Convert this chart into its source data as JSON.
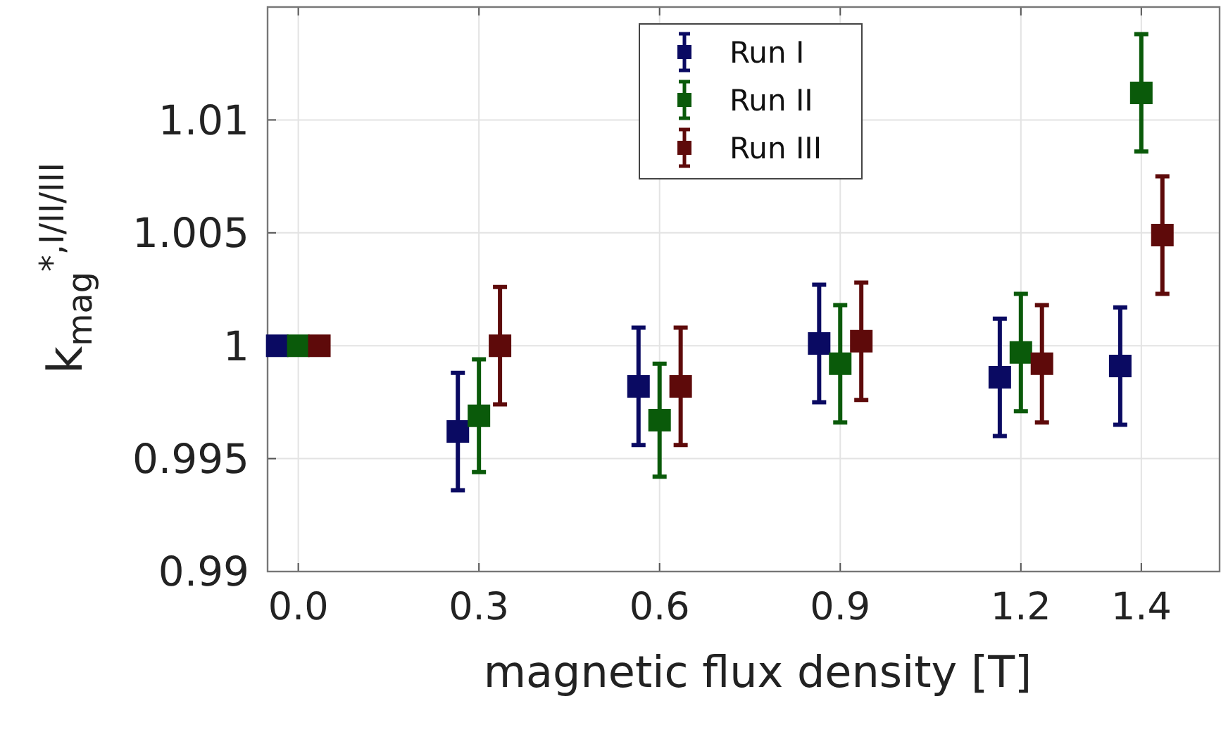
{
  "chart_data": {
    "type": "scatter",
    "xlabel": "magnetic flux density [T]",
    "ylabel": "k$_{mag}$$^{*,I/II/III}$",
    "xlim": [
      -0.051,
      1.53
    ],
    "ylim": [
      0.99,
      1.015
    ],
    "xticks": [
      {
        "value": 0,
        "label": "0.0"
      },
      0.3,
      0.6,
      0.9,
      1.2,
      1.4
    ],
    "yticks": [
      0.99,
      0.995,
      1,
      1.005,
      1.01
    ],
    "grid": true,
    "legend": "top",
    "marker": "square",
    "series": [
      {
        "name": "Run I",
        "color": "#0a0a62",
        "x": [
          -0.035,
          0.265,
          0.565,
          0.865,
          1.165,
          1.365
        ],
        "values": [
          1,
          0.9962,
          0.9982,
          1.0001,
          0.9986,
          0.9991
        ],
        "errors": [
          null,
          0.0026,
          0.0026,
          0.0026,
          0.0026,
          0.0026
        ]
      },
      {
        "name": "Run II",
        "color": "#0a5a0a",
        "x": [
          0,
          0.3,
          0.6,
          0.9,
          1.2,
          1.4
        ],
        "values": [
          1,
          0.9969,
          0.9967,
          0.9992,
          0.9997,
          1.0112
        ],
        "errors": [
          null,
          0.0025,
          0.0025,
          0.0026,
          0.0026,
          0.0026
        ]
      },
      {
        "name": "Run III",
        "color": "#5e0a0a",
        "x": [
          0.035,
          0.335,
          0.635,
          0.935,
          1.235,
          1.435
        ],
        "values": [
          1,
          1.0,
          0.9982,
          1.0002,
          0.9992,
          1.0049
        ],
        "errors": [
          null,
          0.0026,
          0.0026,
          0.0026,
          0.0026,
          0.0026
        ]
      }
    ]
  }
}
